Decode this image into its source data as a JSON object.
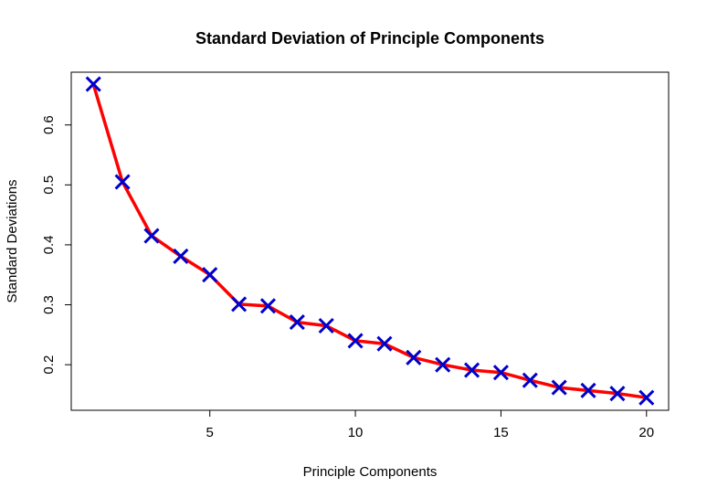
{
  "chart_data": {
    "type": "line",
    "title": "Standard Deviation of Principle Components",
    "xlabel": "Principle Components",
    "ylabel": "Standard Deviations",
    "xlim": [
      0.24,
      20.76
    ],
    "ylim": [
      0.124,
      0.688
    ],
    "xticks": [
      5,
      10,
      15,
      20
    ],
    "yticks": [
      0.2,
      0.3,
      0.4,
      0.5,
      0.6
    ],
    "grid": false,
    "legend": "none",
    "line_color": "#ff0000",
    "marker_color": "#0000cc",
    "marker": "x",
    "series": [
      {
        "x": [
          1,
          2,
          3,
          4,
          5,
          6,
          7,
          8,
          9,
          10,
          11,
          12,
          13,
          14,
          15,
          16,
          17,
          18,
          19,
          20
        ],
        "values": [
          0.668,
          0.505,
          0.415,
          0.381,
          0.35,
          0.301,
          0.298,
          0.271,
          0.265,
          0.24,
          0.235,
          0.212,
          0.2,
          0.191,
          0.187,
          0.174,
          0.162,
          0.157,
          0.152,
          0.145
        ]
      }
    ]
  }
}
